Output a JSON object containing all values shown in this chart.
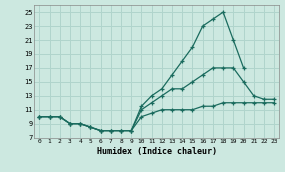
{
  "title": "",
  "xlabel": "Humidex (Indice chaleur)",
  "xlim": [
    -0.5,
    23.5
  ],
  "ylim": [
    7,
    26
  ],
  "xticks": [
    0,
    1,
    2,
    3,
    4,
    5,
    6,
    7,
    8,
    9,
    10,
    11,
    12,
    13,
    14,
    15,
    16,
    17,
    18,
    19,
    20,
    21,
    22,
    23
  ],
  "yticks": [
    7,
    9,
    11,
    13,
    15,
    17,
    19,
    21,
    23,
    25
  ],
  "bg_color": "#cce8e0",
  "grid_color": "#b0d4cc",
  "line_color": "#1a6b5e",
  "lines": [
    {
      "x": [
        0,
        1,
        2,
        3,
        4,
        5,
        6,
        7,
        8,
        9,
        10,
        11,
        12,
        13,
        14,
        15,
        16,
        17,
        18,
        19,
        20,
        21,
        22,
        23
      ],
      "y": [
        10,
        10,
        10,
        9,
        9,
        8.5,
        8,
        8,
        8,
        8,
        11.5,
        13,
        14,
        16,
        18,
        20,
        23,
        24,
        25,
        21,
        17,
        null,
        null,
        null
      ]
    },
    {
      "x": [
        0,
        1,
        2,
        3,
        4,
        5,
        6,
        7,
        8,
        9,
        10,
        11,
        12,
        13,
        14,
        15,
        16,
        17,
        18,
        19,
        20,
        21,
        22,
        23
      ],
      "y": [
        10,
        10,
        10,
        9,
        9,
        8.5,
        8,
        8,
        8,
        8,
        11,
        12,
        13,
        14,
        14,
        15,
        16,
        17,
        17,
        17,
        15,
        13,
        12.5,
        12.5
      ]
    },
    {
      "x": [
        0,
        1,
        2,
        3,
        4,
        5,
        6,
        7,
        8,
        9,
        10,
        11,
        12,
        13,
        14,
        15,
        16,
        17,
        18,
        19,
        20,
        21,
        22,
        23
      ],
      "y": [
        10,
        10,
        10,
        9,
        9,
        8.5,
        8,
        8,
        8,
        8,
        10,
        10.5,
        11,
        11,
        11,
        11,
        11.5,
        11.5,
        12,
        12,
        12,
        12,
        12,
        12
      ]
    }
  ]
}
